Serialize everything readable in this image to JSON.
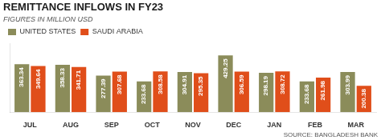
{
  "chart_data": {
    "type": "bar",
    "title": "REMITTANCE INFLOWS IN FY23",
    "subtitle": "FIGURES IN MILLION USD",
    "annotations": [
      "SOURCE: BANGLADESH BANK"
    ],
    "categories": [
      "JUL",
      "AUG",
      "SEP",
      "OCT",
      "NOV",
      "DEC",
      "JAN",
      "FEB",
      "MAR"
    ],
    "series": [
      {
        "name": "UNITED STATES",
        "color": "#8b8c5a",
        "values": [
          363.34,
          358.33,
          277.39,
          233.68,
          304.91,
          429.25,
          298.19,
          233.68,
          303.99
        ]
      },
      {
        "name": "SAUDI ARABIA",
        "color": "#e04e1a",
        "values": [
          349.64,
          341.71,
          307.68,
          308.58,
          295.35,
          306.59,
          308.72,
          261.98,
          200.38
        ]
      }
    ],
    "ylim": [
      0,
      520
    ],
    "grid": false,
    "legend": "upper left",
    "data_labels": true,
    "tick_labels": "x"
  }
}
